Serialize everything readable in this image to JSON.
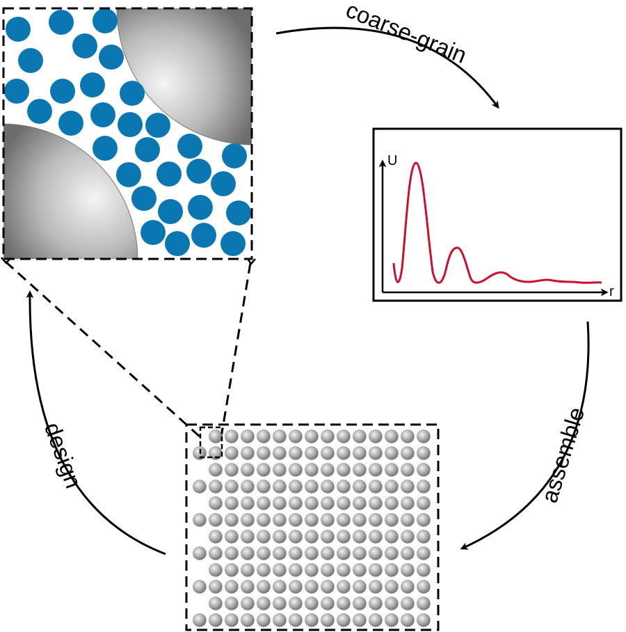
{
  "labels": {
    "coarse_grain": "coarse-grain",
    "assemble": "assemble",
    "design": "design"
  },
  "plot": {
    "y_axis": "U",
    "x_axis": "r",
    "curve_color": "#c8102e"
  },
  "colors": {
    "solvent_particle": "#0a77b3",
    "colloid_light": "#f3f3f3",
    "colloid_dark": "#6b6b6b",
    "outline": "#000000"
  }
}
